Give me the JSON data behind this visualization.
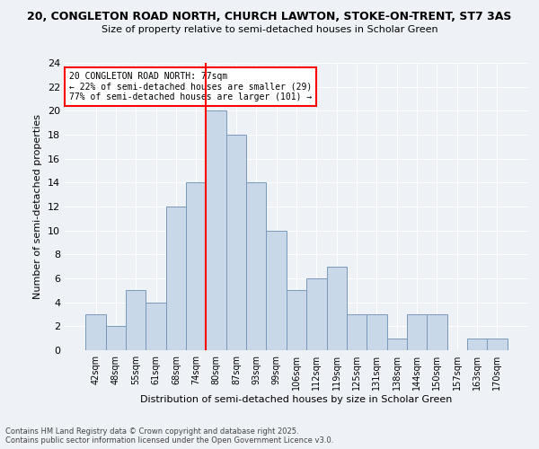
{
  "title_line1": "20, CONGLETON ROAD NORTH, CHURCH LAWTON, STOKE-ON-TRENT, ST7 3AS",
  "title_line2": "Size of property relative to semi-detached houses in Scholar Green",
  "xlabel": "Distribution of semi-detached houses by size in Scholar Green",
  "ylabel": "Number of semi-detached properties",
  "categories": [
    "42sqm",
    "48sqm",
    "55sqm",
    "61sqm",
    "68sqm",
    "74sqm",
    "80sqm",
    "87sqm",
    "93sqm",
    "99sqm",
    "106sqm",
    "112sqm",
    "119sqm",
    "125sqm",
    "131sqm",
    "138sqm",
    "144sqm",
    "150sqm",
    "157sqm",
    "163sqm",
    "170sqm"
  ],
  "values": [
    3,
    2,
    5,
    4,
    12,
    14,
    20,
    18,
    14,
    10,
    5,
    6,
    7,
    3,
    3,
    1,
    3,
    3,
    0,
    1,
    1
  ],
  "bar_color": "#c8d8e8",
  "bar_edge_color": "#7799bb",
  "annotation_text": "20 CONGLETON ROAD NORTH: 77sqm\n← 22% of semi-detached houses are smaller (29)\n77% of semi-detached houses are larger (101) →",
  "ylim": [
    0,
    24
  ],
  "yticks": [
    0,
    2,
    4,
    6,
    8,
    10,
    12,
    14,
    16,
    18,
    20,
    22,
    24
  ],
  "footer_line1": "Contains HM Land Registry data © Crown copyright and database right 2025.",
  "footer_line2": "Contains public sector information licensed under the Open Government Licence v3.0.",
  "background_color": "#eef2f7",
  "grid_color": "#ffffff"
}
